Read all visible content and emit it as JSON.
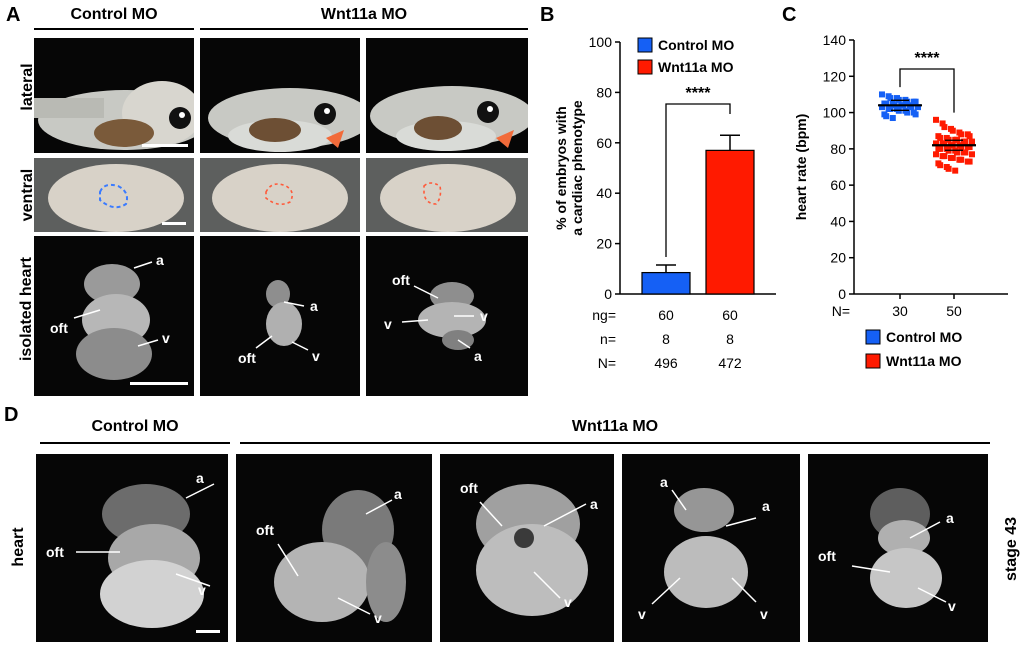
{
  "panels": {
    "A": {
      "letter": "A",
      "header_left": "Control MO",
      "header_right": "Wnt11a MO",
      "row_labels": {
        "lateral": "lateral",
        "ventral": "ventral",
        "isolated": "isolated heart"
      },
      "annotations": {
        "c1": {
          "a": "a",
          "oft": "oft",
          "v": "v"
        },
        "c2": {
          "a": "a",
          "oft": "oft",
          "v": "v"
        },
        "c3": {
          "oft": "oft",
          "v": "v",
          "v2": "v",
          "a": "a"
        }
      },
      "arrow_color": "#f26b3a",
      "outline_control": "#3a7bff",
      "outline_wnt": "#ff5a3a"
    },
    "B": {
      "letter": "B"
    },
    "C": {
      "letter": "C"
    },
    "D": {
      "letter": "D",
      "header_left": "Control MO",
      "header_right": "Wnt11a MO",
      "row_label": "heart",
      "side_label": "stage 43",
      "annotations": [
        {
          "a": "a",
          "oft": "oft",
          "v": "v"
        },
        {
          "a": "a",
          "oft": "oft",
          "v": "v"
        },
        {
          "a": "a",
          "oft": "oft",
          "v": "v"
        },
        {
          "a1": "a",
          "a2": "a",
          "v1": "v",
          "v2": "v"
        },
        {
          "a": "a",
          "oft": "oft",
          "v": "v"
        }
      ]
    }
  },
  "chart_data": [
    {
      "type": "bar",
      "panel": "B",
      "categories": [
        "Control MO",
        "Wnt11a MO"
      ],
      "values": [
        8.5,
        57
      ],
      "errors": [
        3,
        6
      ],
      "colors": [
        "#1560f5",
        "#ff1a00"
      ],
      "ylabel": "% of embryos with a cardiac phenotype",
      "ylim": [
        0,
        100
      ],
      "yticks": [
        0,
        20,
        40,
        60,
        80,
        100
      ],
      "significance": "****",
      "legend": [
        "Control MO",
        "Wnt11a MO"
      ],
      "table": {
        "rows": [
          {
            "label": "ng=",
            "values": [
              "60",
              "60"
            ]
          },
          {
            "label": "n=",
            "values": [
              "8",
              "8"
            ]
          },
          {
            "label": "N=",
            "values": [
              "496",
              "472"
            ]
          }
        ]
      }
    },
    {
      "type": "scatter",
      "panel": "C",
      "ylabel": "heart rate (bpm)",
      "ylim": [
        0,
        140
      ],
      "yticks": [
        0,
        20,
        40,
        60,
        80,
        100,
        120,
        140
      ],
      "significance": "****",
      "xlabel_prefix": "N=",
      "categories": [
        "30",
        "50"
      ],
      "series": [
        {
          "name": "Control MO",
          "color": "#1560f5",
          "mean": 104,
          "values": [
            110,
            109,
            108,
            108,
            107,
            107,
            106,
            106,
            106,
            105,
            105,
            105,
            104,
            104,
            104,
            104,
            103,
            103,
            103,
            102,
            102,
            102,
            101,
            101,
            100,
            100,
            99,
            99,
            98,
            97
          ]
        },
        {
          "name": "Wnt11a MO",
          "color": "#ff1a00",
          "mean": 82,
          "values": [
            96,
            94,
            92,
            91,
            90,
            89,
            88,
            88,
            87,
            87,
            86,
            86,
            85,
            85,
            85,
            84,
            84,
            84,
            83,
            83,
            83,
            82,
            82,
            82,
            81,
            81,
            81,
            80,
            80,
            80,
            79,
            79,
            78,
            78,
            78,
            77,
            77,
            76,
            76,
            75,
            75,
            74,
            74,
            73,
            73,
            72,
            71,
            70,
            69,
            68
          ]
        }
      ],
      "legend": [
        "Control MO",
        "Wnt11a MO"
      ]
    }
  ]
}
